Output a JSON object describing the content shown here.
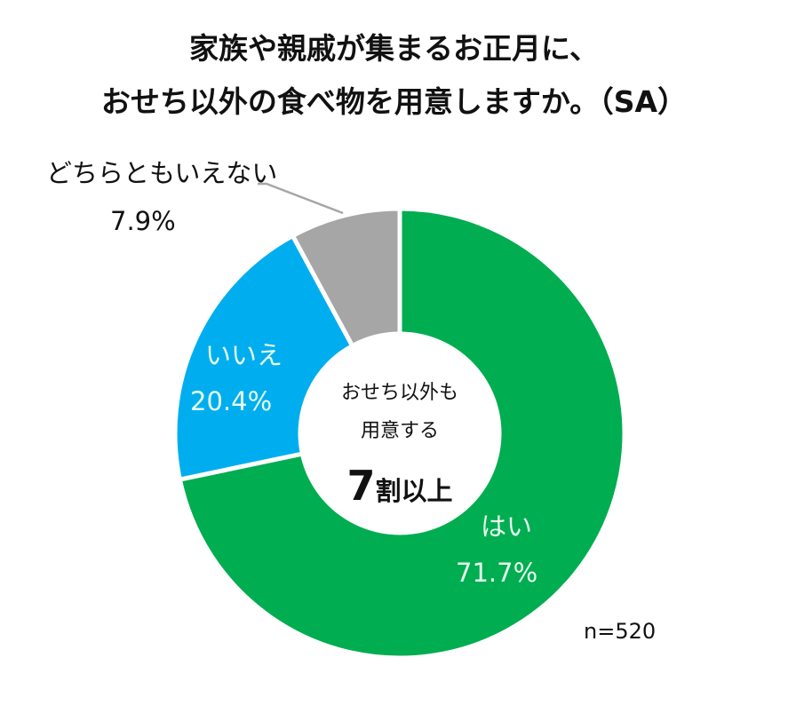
{
  "title": {
    "line1": "家族や親戚が集まるお正月に、",
    "line2": "おせち以外の食べ物を用意しますか。（SA）"
  },
  "center": {
    "line1": "おせち以外も",
    "line2": "用意する",
    "highlight_number": "7",
    "highlight_text": "割以上"
  },
  "sample_size": "n=520",
  "slices": [
    {
      "label": "はい",
      "percent_text": "71.7%",
      "value": 71.7,
      "color": "#00AD50"
    },
    {
      "label": "いいえ",
      "percent_text": "20.4%",
      "value": 20.4,
      "color": "#00AEEF"
    },
    {
      "label": "どちらともいえない",
      "percent_text": "7.9%",
      "value": 7.9,
      "color": "#A6A6A6"
    }
  ],
  "chart_data": {
    "type": "pie",
    "subtype": "donut",
    "title": "家族や親戚が集まるお正月に、おせち以外の食べ物を用意しますか。（SA）",
    "categories": [
      "はい",
      "いいえ",
      "どちらともいえない"
    ],
    "values": [
      71.7,
      20.4,
      7.9
    ],
    "unit": "%",
    "colors": [
      "#00AD50",
      "#00AEEF",
      "#A6A6A6"
    ],
    "center_annotation": "おせち以外も用意する 7割以上",
    "n": 520,
    "start_angle": "12 o'clock",
    "direction": "clockwise"
  }
}
